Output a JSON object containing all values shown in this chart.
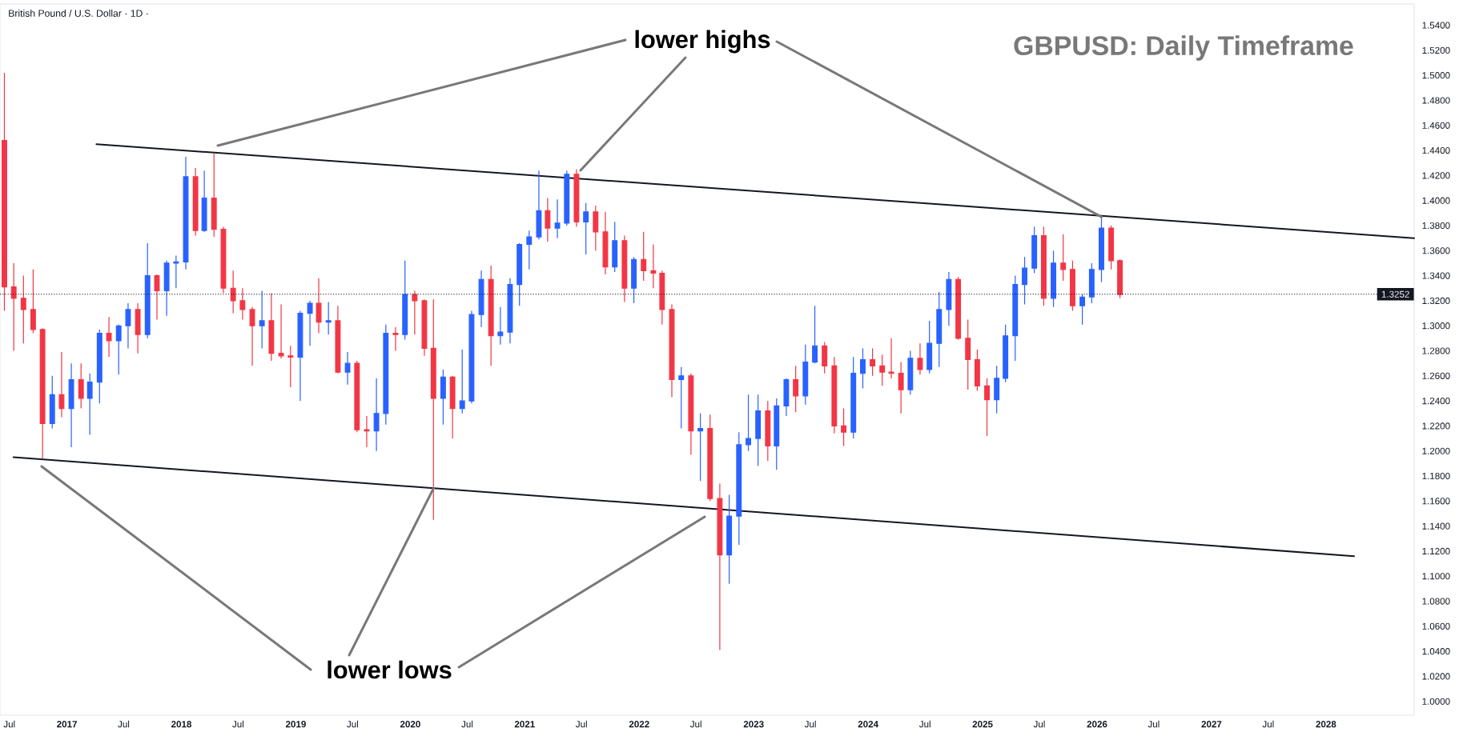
{
  "chart_data": {
    "type": "candlestick",
    "title": "British Pound / U.S. Dollar · 1D ·",
    "subtitle": "GBPUSD: Daily Timeframe",
    "annotations": [
      {
        "text": "lower highs",
        "x": "2026-01-15",
        "y": 1.387
      },
      {
        "text": "lower lows",
        "x": "2020-03-15",
        "y": 1.17
      }
    ],
    "x": [
      "2016-06-15",
      "2016-07-15",
      "2016-08-15",
      "2016-09-15",
      "2016-10-15",
      "2016-11-15",
      "2016-12-15",
      "2017-01-15",
      "2017-02-15",
      "2017-03-15",
      "2017-04-15",
      "2017-05-15",
      "2017-06-15",
      "2017-07-15",
      "2017-08-15",
      "2017-09-15",
      "2017-10-15",
      "2017-11-15",
      "2017-12-15",
      "2018-01-15",
      "2018-02-15",
      "2018-03-15",
      "2018-04-15",
      "2018-05-15",
      "2018-06-15",
      "2018-07-15",
      "2018-08-15",
      "2018-09-15",
      "2018-10-15",
      "2018-11-15",
      "2018-12-15",
      "2019-01-15",
      "2019-02-15",
      "2019-03-15",
      "2019-04-15",
      "2019-05-15",
      "2019-06-15",
      "2019-07-15",
      "2019-08-15",
      "2019-09-15",
      "2019-10-15",
      "2019-11-15",
      "2019-12-15",
      "2020-01-15",
      "2020-02-15",
      "2020-03-15",
      "2020-04-15",
      "2020-05-15",
      "2020-06-15",
      "2020-07-15",
      "2020-08-15",
      "2020-09-15",
      "2020-10-15",
      "2020-11-15",
      "2020-12-15",
      "2021-01-15",
      "2021-02-15",
      "2021-03-15",
      "2021-04-15",
      "2021-05-15",
      "2021-06-15",
      "2021-07-15",
      "2021-08-15",
      "2021-09-15",
      "2021-10-15",
      "2021-11-15",
      "2021-12-15",
      "2022-01-15",
      "2022-02-15",
      "2022-03-15",
      "2022-04-15",
      "2022-05-15",
      "2022-06-15",
      "2022-07-15",
      "2022-08-15",
      "2022-09-15",
      "2022-10-15",
      "2022-11-15",
      "2022-12-15",
      "2023-01-15",
      "2023-02-15",
      "2023-03-15",
      "2023-04-15",
      "2023-05-15",
      "2023-06-15",
      "2023-07-15",
      "2023-08-15",
      "2023-09-15",
      "2023-10-15",
      "2023-11-15",
      "2023-12-15",
      "2024-01-15",
      "2024-02-15",
      "2024-03-15",
      "2024-04-15",
      "2024-05-15",
      "2024-06-15",
      "2024-07-15",
      "2024-08-15",
      "2024-09-15",
      "2024-10-15",
      "2024-11-15",
      "2024-12-15",
      "2025-01-15",
      "2025-02-15",
      "2025-03-15",
      "2025-04-15",
      "2025-05-15",
      "2025-06-15",
      "2025-07-15",
      "2025-08-15",
      "2025-09-15",
      "2025-10-15",
      "2025-11-15",
      "2025-12-15",
      "2026-01-15",
      "2026-02-15",
      "2026-03-15"
    ],
    "ohlc": [
      [
        1.448,
        1.502,
        1.312,
        1.331
      ],
      [
        1.331,
        1.35,
        1.28,
        1.322
      ],
      [
        1.322,
        1.34,
        1.286,
        1.313
      ],
      [
        1.313,
        1.345,
        1.294,
        1.297
      ],
      [
        1.297,
        1.298,
        1.194,
        1.222
      ],
      [
        1.222,
        1.26,
        1.218,
        1.245
      ],
      [
        1.245,
        1.279,
        1.227,
        1.234
      ],
      [
        1.234,
        1.27,
        1.203,
        1.257
      ],
      [
        1.257,
        1.27,
        1.234,
        1.242
      ],
      [
        1.242,
        1.262,
        1.213,
        1.255
      ],
      [
        1.255,
        1.297,
        1.238,
        1.294
      ],
      [
        1.294,
        1.307,
        1.275,
        1.288
      ],
      [
        1.288,
        1.301,
        1.261,
        1.3
      ],
      [
        1.3,
        1.318,
        1.282,
        1.313
      ],
      [
        1.313,
        1.318,
        1.278,
        1.293
      ],
      [
        1.293,
        1.366,
        1.29,
        1.34
      ],
      [
        1.34,
        1.341,
        1.305,
        1.328
      ],
      [
        1.328,
        1.352,
        1.308,
        1.35
      ],
      [
        1.35,
        1.356,
        1.33,
        1.351
      ],
      [
        1.351,
        1.435,
        1.345,
        1.419
      ],
      [
        1.419,
        1.426,
        1.372,
        1.376
      ],
      [
        1.376,
        1.424,
        1.375,
        1.402
      ],
      [
        1.402,
        1.438,
        1.371,
        1.377
      ],
      [
        1.377,
        1.379,
        1.326,
        1.33
      ],
      [
        1.33,
        1.344,
        1.31,
        1.32
      ],
      [
        1.32,
        1.33,
        1.305,
        1.313
      ],
      [
        1.313,
        1.315,
        1.268,
        1.3
      ],
      [
        1.3,
        1.328,
        1.282,
        1.304
      ],
      [
        1.304,
        1.326,
        1.272,
        1.278
      ],
      [
        1.278,
        1.317,
        1.274,
        1.276
      ],
      [
        1.276,
        1.284,
        1.251,
        1.275
      ],
      [
        1.275,
        1.312,
        1.24,
        1.31
      ],
      [
        1.31,
        1.32,
        1.284,
        1.318
      ],
      [
        1.318,
        1.338,
        1.294,
        1.303
      ],
      [
        1.303,
        1.319,
        1.293,
        1.304
      ],
      [
        1.304,
        1.316,
        1.262,
        1.263
      ],
      [
        1.263,
        1.279,
        1.253,
        1.27
      ],
      [
        1.27,
        1.272,
        1.215,
        1.217
      ],
      [
        1.217,
        1.228,
        1.203,
        1.216
      ],
      [
        1.216,
        1.258,
        1.2,
        1.23
      ],
      [
        1.23,
        1.301,
        1.221,
        1.294
      ],
      [
        1.294,
        1.299,
        1.28,
        1.293
      ],
      [
        1.293,
        1.352,
        1.289,
        1.325
      ],
      [
        1.325,
        1.328,
        1.293,
        1.32
      ],
      [
        1.32,
        1.321,
        1.276,
        1.282
      ],
      [
        1.282,
        1.321,
        1.145,
        1.242
      ],
      [
        1.242,
        1.265,
        1.221,
        1.259
      ],
      [
        1.259,
        1.26,
        1.21,
        1.234
      ],
      [
        1.234,
        1.281,
        1.23,
        1.24
      ],
      [
        1.24,
        1.312,
        1.238,
        1.309
      ],
      [
        1.309,
        1.344,
        1.299,
        1.337
      ],
      [
        1.337,
        1.348,
        1.268,
        1.292
      ],
      [
        1.292,
        1.315,
        1.285,
        1.295
      ],
      [
        1.295,
        1.338,
        1.286,
        1.333
      ],
      [
        1.333,
        1.366,
        1.316,
        1.365
      ],
      [
        1.365,
        1.376,
        1.345,
        1.371
      ],
      [
        1.371,
        1.424,
        1.369,
        1.392
      ],
      [
        1.392,
        1.402,
        1.367,
        1.378
      ],
      [
        1.378,
        1.401,
        1.37,
        1.382
      ],
      [
        1.382,
        1.424,
        1.38,
        1.421
      ],
      [
        1.421,
        1.425,
        1.379,
        1.383
      ],
      [
        1.383,
        1.398,
        1.357,
        1.391
      ],
      [
        1.391,
        1.396,
        1.36,
        1.375
      ],
      [
        1.375,
        1.391,
        1.341,
        1.347
      ],
      [
        1.347,
        1.383,
        1.343,
        1.368
      ],
      [
        1.368,
        1.372,
        1.319,
        1.33
      ],
      [
        1.33,
        1.355,
        1.318,
        1.353
      ],
      [
        1.353,
        1.375,
        1.336,
        1.344
      ],
      [
        1.344,
        1.365,
        1.33,
        1.342
      ],
      [
        1.342,
        1.344,
        1.301,
        1.313
      ],
      [
        1.313,
        1.317,
        1.243,
        1.257
      ],
      [
        1.257,
        1.267,
        1.218,
        1.26
      ],
      [
        1.26,
        1.262,
        1.197,
        1.216
      ],
      [
        1.216,
        1.23,
        1.176,
        1.218
      ],
      [
        1.218,
        1.229,
        1.16,
        1.162
      ],
      [
        1.162,
        1.174,
        1.041,
        1.117
      ],
      [
        1.117,
        1.165,
        1.094,
        1.148
      ],
      [
        1.148,
        1.215,
        1.125,
        1.205
      ],
      [
        1.205,
        1.245,
        1.2,
        1.21
      ],
      [
        1.21,
        1.245,
        1.188,
        1.232
      ],
      [
        1.232,
        1.24,
        1.192,
        1.204
      ],
      [
        1.204,
        1.242,
        1.185,
        1.236
      ],
      [
        1.236,
        1.258,
        1.228,
        1.257
      ],
      [
        1.257,
        1.268,
        1.231,
        1.244
      ],
      [
        1.244,
        1.285,
        1.237,
        1.271
      ],
      [
        1.271,
        1.316,
        1.27,
        1.284
      ],
      [
        1.284,
        1.287,
        1.262,
        1.268
      ],
      [
        1.268,
        1.275,
        1.214,
        1.22
      ],
      [
        1.22,
        1.234,
        1.204,
        1.215
      ],
      [
        1.215,
        1.275,
        1.21,
        1.262
      ],
      [
        1.262,
        1.282,
        1.25,
        1.273
      ],
      [
        1.273,
        1.282,
        1.26,
        1.268
      ],
      [
        1.268,
        1.277,
        1.252,
        1.263
      ],
      [
        1.263,
        1.29,
        1.258,
        1.262
      ],
      [
        1.262,
        1.271,
        1.23,
        1.249
      ],
      [
        1.249,
        1.28,
        1.245,
        1.274
      ],
      [
        1.274,
        1.286,
        1.261,
        1.265
      ],
      [
        1.265,
        1.304,
        1.262,
        1.286
      ],
      [
        1.286,
        1.327,
        1.267,
        1.313
      ],
      [
        1.313,
        1.343,
        1.3,
        1.337
      ],
      [
        1.337,
        1.339,
        1.289,
        1.29
      ],
      [
        1.29,
        1.305,
        1.249,
        1.273
      ],
      [
        1.273,
        1.281,
        1.248,
        1.252
      ],
      [
        1.252,
        1.258,
        1.212,
        1.241
      ],
      [
        1.241,
        1.268,
        1.23,
        1.258
      ],
      [
        1.258,
        1.301,
        1.255,
        1.292
      ],
      [
        1.292,
        1.34,
        1.272,
        1.333
      ],
      [
        1.333,
        1.355,
        1.317,
        1.346
      ],
      [
        1.346,
        1.379,
        1.342,
        1.372
      ],
      [
        1.372,
        1.379,
        1.316,
        1.322
      ],
      [
        1.322,
        1.36,
        1.315,
        1.35
      ],
      [
        1.35,
        1.373,
        1.336,
        1.345
      ],
      [
        1.345,
        1.352,
        1.312,
        1.316
      ],
      [
        1.316,
        1.325,
        1.301,
        1.323
      ],
      [
        1.323,
        1.35,
        1.318,
        1.345
      ],
      [
        1.345,
        1.387,
        1.335,
        1.378
      ],
      [
        1.378,
        1.38,
        1.345,
        1.352
      ],
      [
        1.352,
        1.353,
        1.322,
        1.325
      ]
    ],
    "colors": [
      "#f23645",
      "#f23645",
      "#f23645",
      "#f23645",
      "#f23645",
      "#2962ff",
      "#f23645",
      "#2962ff",
      "#f23645",
      "#2962ff",
      "#2962ff",
      "#f23645",
      "#2962ff",
      "#2962ff",
      "#f23645",
      "#2962ff",
      "#f23645",
      "#2962ff",
      "#2962ff",
      "#2962ff",
      "#f23645",
      "#2962ff",
      "#f23645",
      "#f23645",
      "#f23645",
      "#f23645",
      "#f23645",
      "#2962ff",
      "#f23645",
      "#f23645",
      "#f23645",
      "#2962ff",
      "#2962ff",
      "#f23645",
      "#2962ff",
      "#f23645",
      "#2962ff",
      "#f23645",
      "#f23645",
      "#2962ff",
      "#2962ff",
      "#f23645",
      "#2962ff",
      "#f23645",
      "#f23645",
      "#f23645",
      "#2962ff",
      "#f23645",
      "#2962ff",
      "#2962ff",
      "#2962ff",
      "#f23645",
      "#2962ff",
      "#2962ff",
      "#2962ff",
      "#2962ff",
      "#2962ff",
      "#f23645",
      "#2962ff",
      "#2962ff",
      "#f23645",
      "#2962ff",
      "#f23645",
      "#f23645",
      "#2962ff",
      "#f23645",
      "#2962ff",
      "#f23645",
      "#f23645",
      "#f23645",
      "#f23645",
      "#2962ff",
      "#f23645",
      "#2962ff",
      "#f23645",
      "#f23645",
      "#2962ff",
      "#2962ff",
      "#2962ff",
      "#2962ff",
      "#f23645",
      "#2962ff",
      "#2962ff",
      "#f23645",
      "#2962ff",
      "#2962ff",
      "#f23645",
      "#f23645",
      "#f23645",
      "#2962ff",
      "#2962ff",
      "#f23645",
      "#f23645",
      "#f23645",
      "#f23645",
      "#2962ff",
      "#f23645",
      "#2962ff",
      "#2962ff",
      "#2962ff",
      "#f23645",
      "#f23645",
      "#f23645",
      "#f23645",
      "#2962ff",
      "#2962ff",
      "#2962ff",
      "#2962ff",
      "#2962ff",
      "#f23645",
      "#2962ff",
      "#f23645",
      "#f23645",
      "#2962ff",
      "#2962ff",
      "#2962ff",
      "#f23645",
      "#f23645"
    ],
    "series": [
      {
        "type": "line",
        "x": [
          "2017-04-05",
          "2028-10-09"
        ],
        "values": [
          1.445,
          1.37
        ],
        "color": "#131722"
      },
      {
        "type": "line",
        "x": [
          "2016-07-14",
          "2028-03-31"
        ],
        "values": [
          1.195,
          1.116
        ],
        "color": "#131722"
      }
    ],
    "ref_lines": [
      {
        "axis": "y",
        "value": 1.3252,
        "label": "1.3252",
        "line_style": "dotted",
        "color": "#131722"
      }
    ],
    "xlim": [
      "2016-06-01",
      "2028-10-09"
    ],
    "xticks": [
      {
        "value": "2016-07-01",
        "label": "Jul"
      },
      {
        "value": "2017-01-01",
        "label": "2017"
      },
      {
        "value": "2017-07-01",
        "label": "Jul"
      },
      {
        "value": "2018-01-01",
        "label": "2018"
      },
      {
        "value": "2018-07-01",
        "label": "Jul"
      },
      {
        "value": "2019-01-01",
        "label": "2019"
      },
      {
        "value": "2019-07-01",
        "label": "Jul"
      },
      {
        "value": "2020-01-01",
        "label": "2020"
      },
      {
        "value": "2020-07-01",
        "label": "Jul"
      },
      {
        "value": "2021-01-01",
        "label": "2021"
      },
      {
        "value": "2021-07-01",
        "label": "Jul"
      },
      {
        "value": "2022-01-01",
        "label": "2022"
      },
      {
        "value": "2022-07-01",
        "label": "Jul"
      },
      {
        "value": "2023-01-01",
        "label": "2023"
      },
      {
        "value": "2023-07-01",
        "label": "Jul"
      },
      {
        "value": "2024-01-01",
        "label": "2024"
      },
      {
        "value": "2024-07-01",
        "label": "Jul"
      },
      {
        "value": "2025-01-01",
        "label": "2025"
      },
      {
        "value": "2025-07-01",
        "label": "Jul"
      },
      {
        "value": "2026-01-01",
        "label": "2026"
      },
      {
        "value": "2026-07-01",
        "label": "Jul"
      },
      {
        "value": "2027-01-01",
        "label": "2027"
      },
      {
        "value": "2027-07-01",
        "label": "Jul"
      },
      {
        "value": "2028-01-01",
        "label": "2028"
      }
    ],
    "ylim": [
      0.989,
      1.557
    ],
    "yticks": [
      {
        "value": 1.0,
        "label": "1.0000"
      },
      {
        "value": 1.02,
        "label": "1.0200"
      },
      {
        "value": 1.04,
        "label": "1.0400"
      },
      {
        "value": 1.06,
        "label": "1.0600"
      },
      {
        "value": 1.08,
        "label": "1.0800"
      },
      {
        "value": 1.1,
        "label": "1.1000"
      },
      {
        "value": 1.12,
        "label": "1.1200"
      },
      {
        "value": 1.14,
        "label": "1.1400"
      },
      {
        "value": 1.16,
        "label": "1.1600"
      },
      {
        "value": 1.18,
        "label": "1.1800"
      },
      {
        "value": 1.2,
        "label": "1.2000"
      },
      {
        "value": 1.22,
        "label": "1.2200"
      },
      {
        "value": 1.24,
        "label": "1.2400"
      },
      {
        "value": 1.26,
        "label": "1.2600"
      },
      {
        "value": 1.28,
        "label": "1.2800"
      },
      {
        "value": 1.3,
        "label": "1.3000"
      },
      {
        "value": 1.32,
        "label": "1.3200"
      },
      {
        "value": 1.34,
        "label": "1.3400"
      },
      {
        "value": 1.36,
        "label": "1.3600"
      },
      {
        "value": 1.38,
        "label": "1.3800"
      },
      {
        "value": 1.4,
        "label": "1.4000"
      },
      {
        "value": 1.42,
        "label": "1.4200"
      },
      {
        "value": 1.44,
        "label": "1.4400"
      },
      {
        "value": 1.46,
        "label": "1.4600"
      },
      {
        "value": 1.48,
        "label": "1.4800"
      },
      {
        "value": 1.5,
        "label": "1.5000"
      },
      {
        "value": 1.52,
        "label": "1.5200"
      },
      {
        "value": 1.54,
        "label": "1.5400"
      }
    ]
  }
}
